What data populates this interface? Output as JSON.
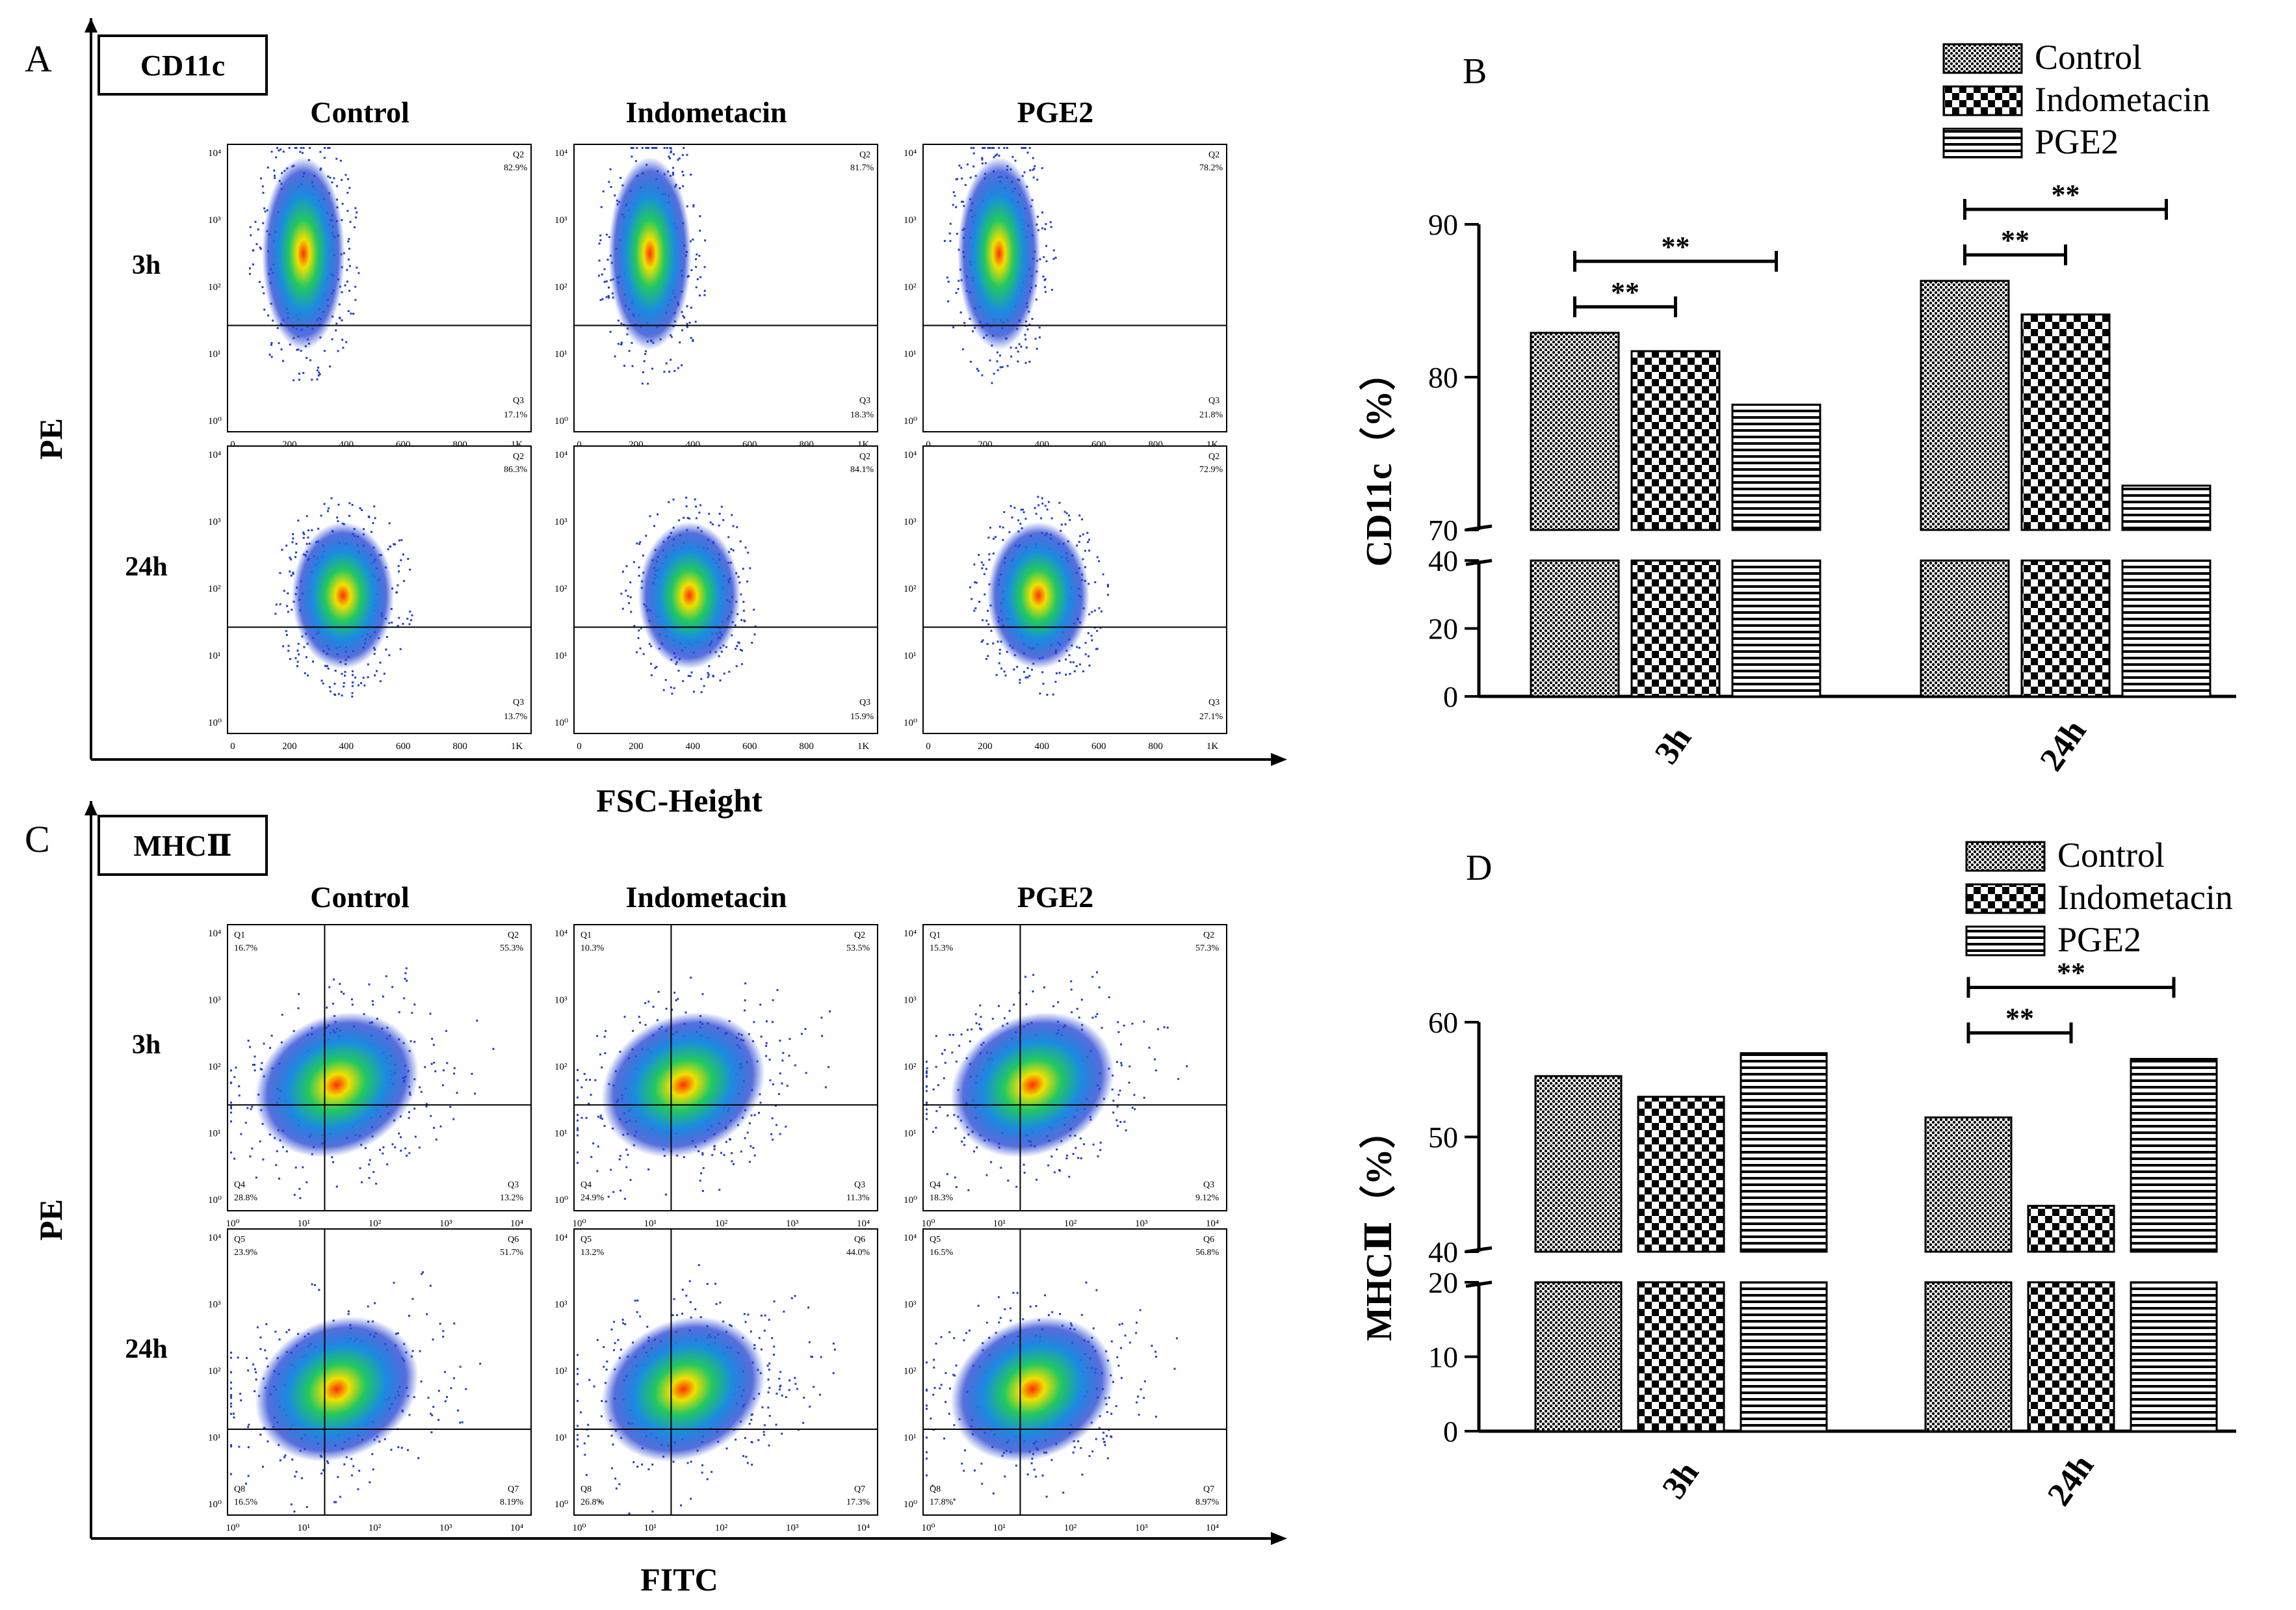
{
  "figure": {
    "panel_labels": [
      "A",
      "B",
      "C",
      "D"
    ],
    "flow_columns": [
      "Control",
      "Indometacin",
      "PGE2"
    ],
    "flow_rows": [
      "3h",
      "24h"
    ],
    "flow_yaxis_label": "PE",
    "panel_a": {
      "marker": "CD11c",
      "x_axis_label": "FSC-Height",
      "y_ticks": [
        "10⁴",
        "10³",
        "10²",
        "10¹",
        "10⁰"
      ],
      "x_ticks": [
        "0",
        "200",
        "400",
        "600",
        "800",
        "1K"
      ],
      "plots": [
        [
          {
            "q2": "Q2",
            "q2_pct": "82.9%",
            "q3": "Q3",
            "q3_pct": "17.1%"
          },
          {
            "q2": "Q2",
            "q2_pct": "81.7%",
            "q3": "Q3",
            "q3_pct": "18.3%"
          },
          {
            "q2": "Q2",
            "q2_pct": "78.2%",
            "q3": "Q3",
            "q3_pct": "21.8%"
          }
        ],
        [
          {
            "q2": "Q2",
            "q2_pct": "86.3%",
            "q3": "Q3",
            "q3_pct": "13.7%"
          },
          {
            "q2": "Q2",
            "q2_pct": "84.1%",
            "q3": "Q3",
            "q3_pct": "15.9%"
          },
          {
            "q2": "Q2",
            "q2_pct": "72.9%",
            "q3": "Q3",
            "q3_pct": "27.1%"
          }
        ]
      ]
    },
    "panel_c": {
      "marker": "MHCⅡ",
      "x_axis_label": "FITC",
      "y_ticks": [
        "10⁴",
        "10³",
        "10²",
        "10¹",
        "10⁰"
      ],
      "x_ticks": [
        "10⁰",
        "10¹",
        "10²",
        "10³",
        "10⁴"
      ],
      "plots": [
        [
          {
            "tl": "Q1",
            "tl_pct": "16.7%",
            "tr": "Q2",
            "tr_pct": "55.3%",
            "bl": "Q4",
            "bl_pct": "28.8%",
            "br": "Q3",
            "br_pct": "13.2%"
          },
          {
            "tl": "Q1",
            "tl_pct": "10.3%",
            "tr": "Q2",
            "tr_pct": "53.5%",
            "bl": "Q4",
            "bl_pct": "24.9%",
            "br": "Q3",
            "br_pct": "11.3%"
          },
          {
            "tl": "Q1",
            "tl_pct": "15.3%",
            "tr": "Q2",
            "tr_pct": "57.3%",
            "bl": "Q4",
            "bl_pct": "18.3%",
            "br": "Q3",
            "br_pct": "9.12%"
          }
        ],
        [
          {
            "tl": "Q5",
            "tl_pct": "23.9%",
            "tr": "Q6",
            "tr_pct": "51.7%",
            "bl": "Q8",
            "bl_pct": "16.5%",
            "br": "Q7",
            "br_pct": "8.19%"
          },
          {
            "tl": "Q5",
            "tl_pct": "13.2%",
            "tr": "Q6",
            "tr_pct": "44.0%",
            "bl": "Q8",
            "bl_pct": "26.8%",
            "br": "Q7",
            "br_pct": "17.3%"
          },
          {
            "tl": "Q5",
            "tl_pct": "16.5%",
            "tr": "Q6",
            "tr_pct": "56.8%",
            "bl": "Q8",
            "bl_pct": "17.8%",
            "br": "Q7",
            "br_pct": "8.97%"
          }
        ]
      ]
    }
  },
  "colors": {
    "axis": "#000000",
    "scatter_low": "#1f3fd0",
    "scatter_mid": "#00c8c8",
    "scatter_high": "#f0e000",
    "scatter_peak": "#ff3000",
    "hatch_fill": "#000000"
  },
  "chart_data": [
    {
      "type": "bar",
      "panel": "B",
      "title": "",
      "xlabel": "",
      "ylabel": "CD11c（%）",
      "categories": [
        "3h",
        "24h"
      ],
      "series": [
        {
          "name": "Control",
          "pattern": "dots",
          "values": [
            82.9,
            86.3
          ]
        },
        {
          "name": "Indometacin",
          "pattern": "checker",
          "values": [
            81.7,
            84.1
          ]
        },
        {
          "name": "PGE2",
          "pattern": "hstripes",
          "values": [
            78.2,
            72.9
          ]
        }
      ],
      "axis_break": {
        "lower_range": [
          0,
          40
        ],
        "upper_range": [
          70,
          90
        ]
      },
      "lower_ticks": [
        "0",
        "20",
        "40"
      ],
      "upper_ticks": [
        "70",
        "80",
        "90"
      ],
      "significance": [
        {
          "category": "3h",
          "from": "Control",
          "to": "Indometacin",
          "label": "**"
        },
        {
          "category": "3h",
          "from": "Control",
          "to": "PGE2",
          "label": "**"
        },
        {
          "category": "24h",
          "from": "Control",
          "to": "Indometacin",
          "label": "**"
        },
        {
          "category": "24h",
          "from": "Control",
          "to": "PGE2",
          "label": "**"
        }
      ],
      "legend": "top-right"
    },
    {
      "type": "bar",
      "panel": "D",
      "title": "",
      "xlabel": "",
      "ylabel": "MHCⅡ（%）",
      "categories": [
        "3h",
        "24h"
      ],
      "series": [
        {
          "name": "Control",
          "pattern": "dots",
          "values": [
            55.3,
            51.7
          ]
        },
        {
          "name": "Indometacin",
          "pattern": "checker",
          "values": [
            53.5,
            44.0
          ]
        },
        {
          "name": "PGE2",
          "pattern": "hstripes",
          "values": [
            57.3,
            56.8
          ]
        }
      ],
      "axis_break": {
        "lower_range": [
          0,
          20
        ],
        "upper_range": [
          40,
          60
        ]
      },
      "lower_ticks": [
        "0",
        "10",
        "20"
      ],
      "upper_ticks": [
        "40",
        "50",
        "60"
      ],
      "significance": [
        {
          "category": "24h",
          "from": "Control",
          "to": "Indometacin",
          "label": "**"
        },
        {
          "category": "24h",
          "from": "Control",
          "to": "PGE2",
          "label": "**"
        }
      ],
      "legend": "top-right"
    }
  ]
}
